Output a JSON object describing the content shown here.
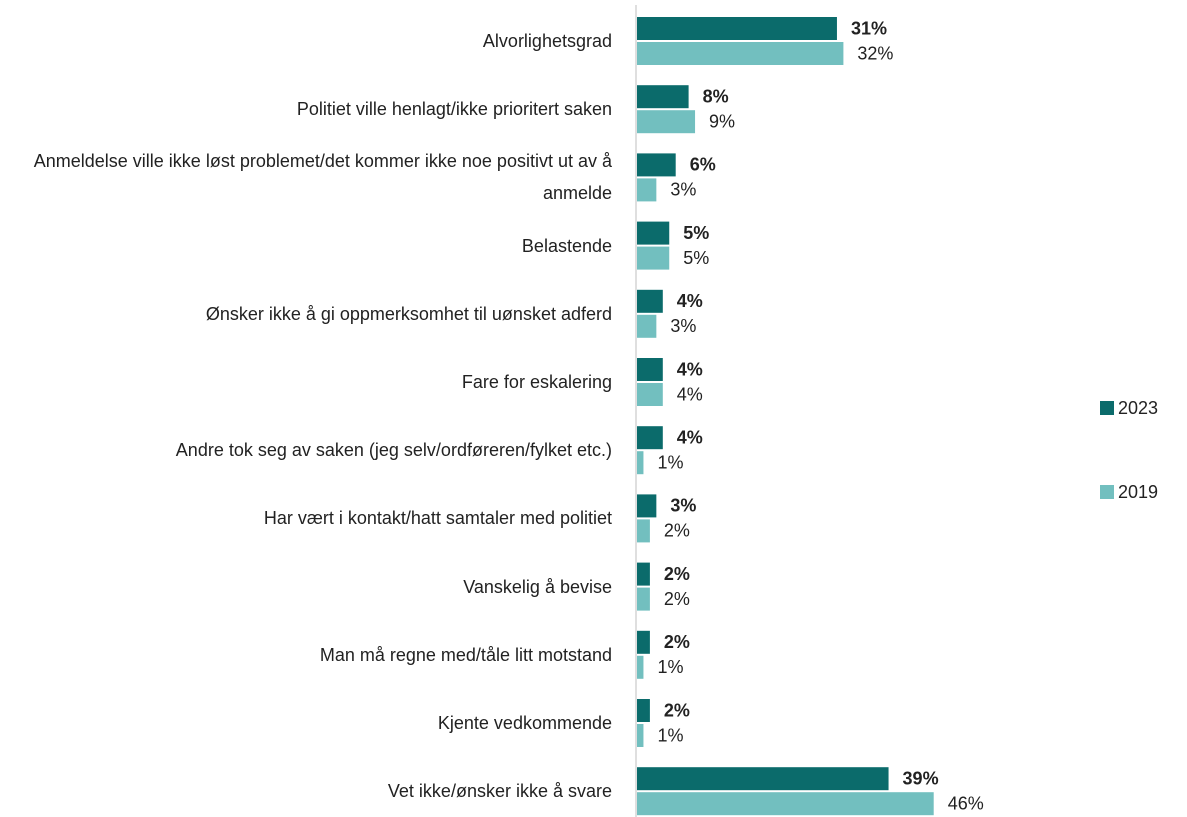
{
  "chart_data": {
    "type": "hbar",
    "categories": [
      "Alvorlighetsgrad",
      "Politiet ville henlagt/ikke prioritert saken",
      "Anmeldelse ville ikke løst problemet/det kommer ikke noe positivt ut av å anmelde",
      "Belastende",
      "Ønsker ikke å gi oppmerksomhet til uønsket adferd",
      "Fare for eskalering",
      "Andre tok seg av saken (jeg selv/ordføreren/fylket etc.)",
      "Har vært i kontakt/hatt samtaler med politiet",
      "Vanskelig å bevise",
      "Man må regne med/tåle litt motstand",
      "Kjente vedkommende",
      "Vet ikke/ønsker ikke å svare"
    ],
    "series": [
      {
        "name": "2023",
        "color": "#0b6b6b",
        "values": [
          31,
          8,
          6,
          5,
          4,
          4,
          4,
          3,
          2,
          2,
          2,
          39
        ],
        "value_labels": [
          "31%",
          "8%",
          "6%",
          "5%",
          "4%",
          "4%",
          "4%",
          "3%",
          "2%",
          "2%",
          "2%",
          "39%"
        ]
      },
      {
        "name": "2019",
        "color": "#72bfbf",
        "values": [
          32,
          9,
          3,
          5,
          3,
          4,
          1,
          2,
          2,
          1,
          1,
          46
        ],
        "value_labels": [
          "32%",
          "9%",
          "3%",
          "5%",
          "3%",
          "4%",
          "1%",
          "2%",
          "2%",
          "1%",
          "1%",
          "46%"
        ]
      }
    ],
    "legend": "right"
  }
}
